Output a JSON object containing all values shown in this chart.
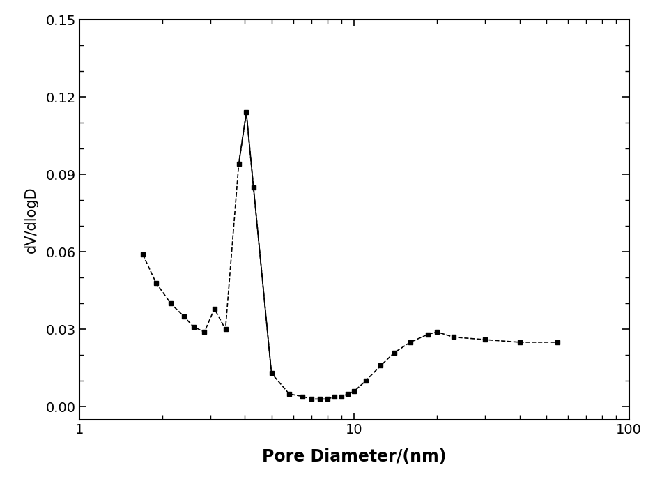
{
  "x": [
    1.7,
    1.9,
    2.15,
    2.4,
    2.6,
    2.85,
    3.1,
    3.4,
    3.8,
    4.05,
    4.3,
    5.0,
    5.8,
    6.5,
    7.0,
    7.5,
    8.0,
    8.5,
    9.0,
    9.5,
    10.0,
    11.0,
    12.5,
    14.0,
    16.0,
    18.5,
    20.0,
    23.0,
    30.0,
    40.0,
    55.0
  ],
  "y": [
    0.059,
    0.048,
    0.04,
    0.035,
    0.031,
    0.029,
    0.038,
    0.03,
    0.094,
    0.114,
    0.085,
    0.013,
    0.005,
    0.004,
    0.003,
    0.003,
    0.003,
    0.004,
    0.004,
    0.005,
    0.006,
    0.01,
    0.016,
    0.021,
    0.025,
    0.028,
    0.029,
    0.027,
    0.026,
    0.025,
    0.025
  ],
  "xlabel": "Pore Diameter/(nm)",
  "ylabel": "dV/dlogD",
  "xlim": [
    1,
    100
  ],
  "ylim": [
    -0.005,
    0.15
  ],
  "yticks": [
    0.0,
    0.03,
    0.06,
    0.09,
    0.12,
    0.15
  ],
  "marker": "s",
  "marker_color": "#000000",
  "line_color": "#000000",
  "line_style": "--",
  "marker_size": 5,
  "line_width": 1.2,
  "background_color": "#ffffff",
  "xlabel_fontsize": 17,
  "ylabel_fontsize": 15,
  "tick_fontsize": 14,
  "figsize": [
    9.5,
    7.0
  ]
}
